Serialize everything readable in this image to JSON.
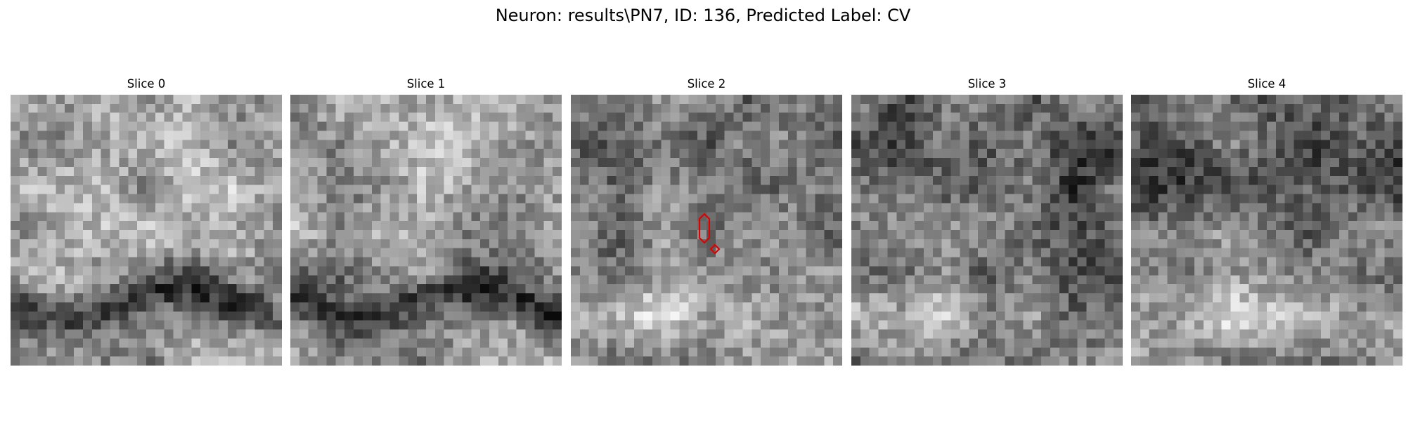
{
  "figure": {
    "title": "Neuron: results\\PN7, ID: 136, Predicted Label: CV"
  },
  "panels": [
    {
      "title": "Slice 0",
      "mean_tone": 150,
      "dark_band": "bottom"
    },
    {
      "title": "Slice 1",
      "mean_tone": 140,
      "dark_band": "bottom"
    },
    {
      "title": "Slice 2",
      "mean_tone": 135,
      "dark_band": "top",
      "contour": true
    },
    {
      "title": "Slice 3",
      "mean_tone": 115,
      "dark_band": "top"
    },
    {
      "title": "Slice 4",
      "mean_tone": 120,
      "dark_band": "top"
    }
  ],
  "contour_color": "#e00000"
}
